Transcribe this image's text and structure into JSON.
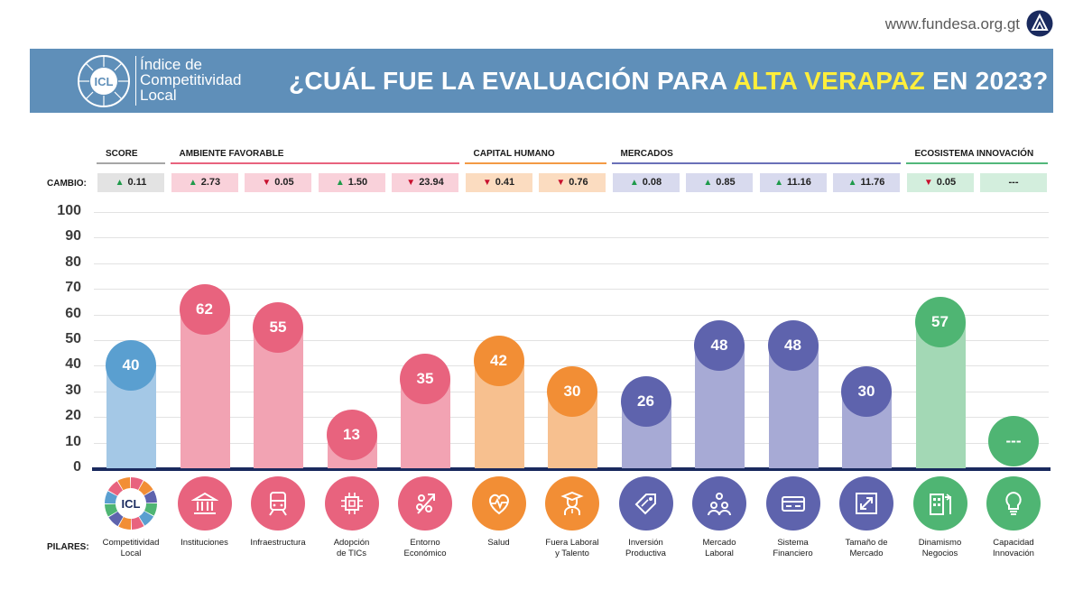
{
  "header": {
    "url": "www.fundesa.org.gt",
    "logo_line1": "Índice de",
    "logo_line2": "Competitividad",
    "logo_line3": "Local",
    "logo_badge": "ICL",
    "title_pre": "¿CUÁL FUE LA EVALUACIÓN PARA ",
    "title_highlight": "ALTA VERAPAZ",
    "title_post": " EN 2023?"
  },
  "labels": {
    "cambio": "CAMBIO:",
    "pilares": "PILARES:"
  },
  "groups": [
    {
      "label": "SCORE",
      "color": "#a6a6a6"
    },
    {
      "label": "AMBIENTE FAVORABLE",
      "color": "#e8637e"
    },
    {
      "label": "CAPITAL HUMANO",
      "color": "#f39a45"
    },
    {
      "label": "MERCADOS",
      "color": "#6a70b8"
    },
    {
      "label": "ECOSISTEMA INNOVACIÓN",
      "color": "#52b77a"
    }
  ],
  "colors": {
    "score": "#5a9fd0",
    "ambiente": "#e8637e",
    "capital": "#f28e35",
    "mercados": "#5e63ad",
    "innovacion": "#4fb573",
    "score_bar": "#a4c8e6",
    "ambiente_bar": "#f2a3b3",
    "capital_bar": "#f7c08f",
    "mercados_bar": "#a7aad5",
    "innovacion_bar": "#a3d8b5",
    "score_box": "#e3e3e3",
    "ambiente_box": "#f9d1da",
    "capital_box": "#fbdcc0",
    "mercados_box": "#d8daee",
    "innovacion_box": "#d3eedd"
  },
  "pillars": [
    {
      "label1": "Competitividad",
      "label2": "Local",
      "value": 40,
      "value_text": "40",
      "change": "0.11",
      "direction": "up",
      "group": "score",
      "icon": "icl-wheel-icon"
    },
    {
      "label1": "Instituciones",
      "label2": "",
      "value": 62,
      "value_text": "62",
      "change": "2.73",
      "direction": "up",
      "group": "ambiente",
      "icon": "building-icon"
    },
    {
      "label1": "Infraestructura",
      "label2": "",
      "value": 55,
      "value_text": "55",
      "change": "0.05",
      "direction": "down",
      "group": "ambiente",
      "icon": "train-icon"
    },
    {
      "label1": "Adopción",
      "label2": "de TICs",
      "value": 13,
      "value_text": "13",
      "change": "1.50",
      "direction": "up",
      "group": "ambiente",
      "icon": "chip-icon"
    },
    {
      "label1": "Entorno",
      "label2": "Económico",
      "value": 35,
      "value_text": "35",
      "change": "23.94",
      "direction": "down",
      "group": "ambiente",
      "icon": "percent-icon"
    },
    {
      "label1": "Salud",
      "label2": "",
      "value": 42,
      "value_text": "42",
      "change": "0.41",
      "direction": "down",
      "group": "capital",
      "icon": "heart-pulse-icon"
    },
    {
      "label1": "Fuera Laboral",
      "label2": "y Talento",
      "value": 30,
      "value_text": "30",
      "change": "0.76",
      "direction": "down",
      "group": "capital",
      "icon": "graduate-icon"
    },
    {
      "label1": "Inversión",
      "label2": "Productiva",
      "value": 26,
      "value_text": "26",
      "change": "0.08",
      "direction": "up",
      "group": "mercados",
      "icon": "tag-icon"
    },
    {
      "label1": "Mercado",
      "label2": "Laboral",
      "value": 48,
      "value_text": "48",
      "change": "0.85",
      "direction": "up",
      "group": "mercados",
      "icon": "people-icon"
    },
    {
      "label1": "Sistema",
      "label2": "Financiero",
      "value": 48,
      "value_text": "48",
      "change": "11.16",
      "direction": "up",
      "group": "mercados",
      "icon": "card-icon"
    },
    {
      "label1": "Tamaño de",
      "label2": "Mercado",
      "value": 30,
      "value_text": "30",
      "change": "11.76",
      "direction": "up",
      "group": "mercados",
      "icon": "expand-icon"
    },
    {
      "label1": "Dinamismo",
      "label2": "Negocios",
      "value": 57,
      "value_text": "57",
      "change": "0.05",
      "direction": "down",
      "group": "innovacion",
      "icon": "business-icon"
    },
    {
      "label1": "Capacidad",
      "label2": "Innovación",
      "value": 0,
      "value_text": "---",
      "change": "---",
      "direction": "none",
      "group": "innovacion",
      "icon": "lightbulb-icon"
    }
  ],
  "chart_data": {
    "type": "bar",
    "title": "¿CUÁL FUE LA EVALUACIÓN PARA ALTA VERAPAZ EN 2023?",
    "categories": [
      "Competitividad Local",
      "Instituciones",
      "Infraestructura",
      "Adopción de TICs",
      "Entorno Económico",
      "Salud",
      "Fuera Laboral y Talento",
      "Inversión Productiva",
      "Mercado Laboral",
      "Sistema Financiero",
      "Tamaño de Mercado",
      "Dinamismo Negocios",
      "Capacidad Innovación"
    ],
    "values": [
      40,
      62,
      55,
      13,
      35,
      42,
      30,
      26,
      48,
      48,
      30,
      57,
      null
    ],
    "changes": [
      "+0.11",
      "+2.73",
      "-0.05",
      "+1.50",
      "-23.94",
      "-0.41",
      "-0.76",
      "+0.08",
      "+0.85",
      "+11.16",
      "+11.76",
      "-0.05",
      "---"
    ],
    "ylim": [
      0,
      100
    ],
    "yticks": [
      0,
      10,
      20,
      30,
      40,
      50,
      60,
      70,
      80,
      90,
      100
    ],
    "grid": true
  }
}
